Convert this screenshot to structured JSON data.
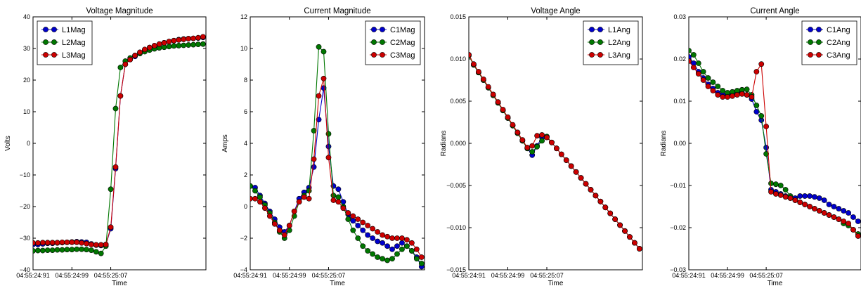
{
  "colors": {
    "blue": "#0000cc",
    "green": "#007700",
    "red": "#cc0000"
  },
  "chart_data": [
    {
      "type": "line",
      "title": "Voltage Magnitude",
      "xlabel": "Time",
      "ylabel": "Volts",
      "ylim": [
        -40,
        40
      ],
      "yticks": [
        40,
        30,
        20,
        10,
        0,
        -10,
        -20,
        -30,
        -40
      ],
      "ytick_labels": [
        "40",
        "30",
        "20",
        "10",
        "0",
        "−10",
        "−20",
        "−30",
        "−40"
      ],
      "xticks": [
        "04:55:24:91",
        "04:55:24:99",
        "04:55:25:07"
      ],
      "x": [
        0,
        1,
        2,
        3,
        4,
        5,
        6,
        7,
        8,
        9,
        10,
        11,
        12,
        13,
        14,
        15,
        16,
        17,
        18,
        19,
        20,
        21,
        22,
        23,
        24,
        25,
        26,
        27,
        28,
        29,
        30,
        31,
        32,
        33,
        34,
        35
      ],
      "legend_loc": "upper-left",
      "series": [
        {
          "name": "L1Mag",
          "color": "blue",
          "values": [
            -32.0,
            -32.0,
            -31.8,
            -31.6,
            -31.6,
            -31.5,
            -31.4,
            -31.3,
            -31.2,
            -31.1,
            -31.2,
            -31.3,
            -31.8,
            -32.2,
            -32.3,
            -32.0,
            -27.0,
            -8.0,
            15.0,
            25.0,
            26.5,
            27.5,
            28.5,
            29.5,
            30.3,
            30.8,
            31.3,
            31.8,
            32.2,
            32.5,
            32.8,
            33.0,
            33.1,
            33.2,
            33.3,
            33.5
          ]
        },
        {
          "name": "L2Mag",
          "color": "green",
          "values": [
            -34.0,
            -33.9,
            -33.9,
            -33.8,
            -33.8,
            -33.7,
            -33.7,
            -33.6,
            -33.6,
            -33.5,
            -33.5,
            -33.6,
            -33.8,
            -34.3,
            -34.8,
            -32.5,
            -14.5,
            11.0,
            24.0,
            26.0,
            27.0,
            27.8,
            28.4,
            29.0,
            29.5,
            29.9,
            30.2,
            30.4,
            30.6,
            30.8,
            30.9,
            31.0,
            31.1,
            31.2,
            31.3,
            31.4
          ]
        },
        {
          "name": "L3Mag",
          "color": "red",
          "values": [
            -31.5,
            -31.5,
            -31.4,
            -31.4,
            -31.4,
            -31.4,
            -31.3,
            -31.3,
            -31.3,
            -31.3,
            -31.5,
            -31.7,
            -32.0,
            -32.1,
            -32.1,
            -32.0,
            -26.5,
            -7.5,
            15.0,
            25.0,
            26.5,
            27.8,
            28.8,
            29.7,
            30.3,
            30.9,
            31.4,
            31.8,
            32.2,
            32.5,
            32.7,
            32.9,
            33.1,
            33.2,
            33.4,
            33.7
          ]
        }
      ]
    },
    {
      "type": "line",
      "title": "Current Magnitude",
      "xlabel": "Time",
      "ylabel": "Amps",
      "ylim": [
        -4,
        12
      ],
      "yticks": [
        12,
        10,
        8,
        6,
        4,
        2,
        0,
        -2,
        -4
      ],
      "ytick_labels": [
        "12",
        "10",
        "8",
        "6",
        "4",
        "2",
        "0",
        "−2",
        "−4"
      ],
      "xticks": [
        "04:55:24:91",
        "04:55:24:99",
        "04:55:25:07"
      ],
      "x": [
        0,
        1,
        2,
        3,
        4,
        5,
        6,
        7,
        8,
        9,
        10,
        11,
        12,
        13,
        14,
        15,
        16,
        17,
        18,
        19,
        20,
        21,
        22,
        23,
        24,
        25,
        26,
        27,
        28,
        29,
        30,
        31,
        32,
        33,
        34,
        35
      ],
      "legend_loc": "upper-right",
      "series": [
        {
          "name": "C1Mag",
          "color": "blue",
          "values": [
            1.3,
            1.2,
            0.7,
            0.2,
            -0.3,
            -0.8,
            -1.3,
            -1.6,
            -1.2,
            -0.3,
            0.5,
            0.9,
            1.2,
            2.5,
            5.5,
            7.5,
            3.8,
            1.3,
            1.1,
            0.3,
            -0.5,
            -0.9,
            -1.2,
            -1.5,
            -1.8,
            -2.0,
            -2.2,
            -2.3,
            -2.5,
            -2.7,
            -2.5,
            -2.3,
            -2.5,
            -2.8,
            -3.2,
            -3.8
          ]
        },
        {
          "name": "C2Mag",
          "color": "green",
          "values": [
            1.3,
            1.0,
            0.6,
            0.1,
            -0.4,
            -1.0,
            -1.6,
            -2.0,
            -1.5,
            -0.6,
            0.3,
            0.7,
            1.0,
            4.8,
            10.1,
            9.8,
            4.6,
            0.7,
            0.6,
            0.0,
            -0.8,
            -1.5,
            -2.0,
            -2.5,
            -2.8,
            -3.0,
            -3.2,
            -3.3,
            -3.4,
            -3.3,
            -3.0,
            -2.7,
            -2.5,
            -2.8,
            -3.3,
            -3.6
          ]
        },
        {
          "name": "C3Mag",
          "color": "red",
          "values": [
            0.5,
            0.5,
            0.3,
            -0.1,
            -0.6,
            -1.1,
            -1.5,
            -1.8,
            -1.2,
            -0.3,
            0.3,
            0.6,
            0.5,
            3.0,
            7.0,
            8.1,
            3.1,
            0.4,
            0.3,
            -0.1,
            -0.4,
            -0.6,
            -0.8,
            -1.0,
            -1.2,
            -1.4,
            -1.6,
            -1.8,
            -1.9,
            -2.0,
            -2.0,
            -2.0,
            -2.1,
            -2.3,
            -2.7,
            -3.2
          ]
        }
      ]
    },
    {
      "type": "line",
      "title": "Voltage Angle",
      "xlabel": "Time",
      "ylabel": "Radians",
      "ylim": [
        -0.015,
        0.015
      ],
      "yticks": [
        0.015,
        0.01,
        0.005,
        0.0,
        -0.005,
        -0.01,
        -0.015
      ],
      "ytick_labels": [
        "0.015",
        "0.010",
        "0.005",
        "0.000",
        "−0.005",
        "−0.010",
        "−0.015"
      ],
      "xticks": [
        "04:55:24:91",
        "04:55:24:99",
        "04:55:25:07"
      ],
      "x": [
        0,
        1,
        2,
        3,
        4,
        5,
        6,
        7,
        8,
        9,
        10,
        11,
        12,
        13,
        14,
        15,
        16,
        17,
        18,
        19,
        20,
        21,
        22,
        23,
        24,
        25,
        26,
        27,
        28,
        29,
        30,
        31,
        32,
        33,
        34,
        35
      ],
      "legend_loc": "upper-right",
      "series": [
        {
          "name": "L1Ang",
          "color": "blue",
          "values": [
            0.0105,
            0.0093,
            0.0084,
            0.0075,
            0.0066,
            0.0057,
            0.0048,
            0.0039,
            0.003,
            0.0021,
            0.0012,
            0.0003,
            -0.0006,
            -0.0014,
            -0.0003,
            0.0007,
            0.0008,
            0.0001,
            -0.0006,
            -0.0013,
            -0.002,
            -0.0027,
            -0.0034,
            -0.0041,
            -0.0048,
            -0.0055,
            -0.0062,
            -0.0069,
            -0.0076,
            -0.0083,
            -0.009,
            -0.0097,
            -0.0104,
            -0.0111,
            -0.0118,
            -0.0125
          ]
        },
        {
          "name": "L2Ang",
          "color": "green",
          "values": [
            0.0104,
            0.0093,
            0.0084,
            0.0075,
            0.0066,
            0.0057,
            0.0048,
            0.0039,
            0.003,
            0.0021,
            0.0012,
            0.0003,
            -0.0006,
            -0.001,
            -0.0004,
            0.0003,
            0.0008,
            0.0001,
            -0.0006,
            -0.0013,
            -0.002,
            -0.0027,
            -0.0034,
            -0.0041,
            -0.0048,
            -0.0055,
            -0.0062,
            -0.0069,
            -0.0076,
            -0.0083,
            -0.009,
            -0.0097,
            -0.0104,
            -0.0111,
            -0.0118,
            -0.0125
          ]
        },
        {
          "name": "L3Ang",
          "color": "red",
          "values": [
            0.0105,
            0.0094,
            0.0085,
            0.0076,
            0.0067,
            0.0058,
            0.0049,
            0.004,
            0.0031,
            0.0022,
            0.0013,
            0.0004,
            -0.0005,
            -0.0003,
            0.0009,
            0.001,
            0.0007,
            0.0001,
            -0.0006,
            -0.0013,
            -0.002,
            -0.0027,
            -0.0034,
            -0.0041,
            -0.0048,
            -0.0055,
            -0.0062,
            -0.0069,
            -0.0076,
            -0.0083,
            -0.009,
            -0.0097,
            -0.0104,
            -0.0111,
            -0.0118,
            -0.0125
          ]
        }
      ]
    },
    {
      "type": "line",
      "title": "Current Angle",
      "xlabel": "Time",
      "ylabel": "Radians",
      "ylim": [
        -0.03,
        0.03
      ],
      "yticks": [
        0.03,
        0.02,
        0.01,
        0.0,
        -0.01,
        -0.02,
        -0.03
      ],
      "ytick_labels": [
        "0.03",
        "0.02",
        "0.01",
        "0.00",
        "−0.01",
        "−0.02",
        "−0.03"
      ],
      "xticks": [
        "04:55:24:91",
        "04:55:24:99",
        "04:55:25:07"
      ],
      "x": [
        0,
        1,
        2,
        3,
        4,
        5,
        6,
        7,
        8,
        9,
        10,
        11,
        12,
        13,
        14,
        15,
        16,
        17,
        18,
        19,
        20,
        21,
        22,
        23,
        24,
        25,
        26,
        27,
        28,
        29,
        30,
        31,
        32,
        33,
        34,
        35
      ],
      "legend_loc": "upper-right",
      "series": [
        {
          "name": "C1Ang",
          "color": "blue",
          "values": [
            0.0205,
            0.019,
            0.017,
            0.0155,
            0.014,
            0.013,
            0.012,
            0.0115,
            0.0115,
            0.012,
            0.012,
            0.012,
            0.0115,
            0.0105,
            0.0075,
            0.0055,
            -0.001,
            -0.011,
            -0.0115,
            -0.012,
            -0.0125,
            -0.013,
            -0.013,
            -0.0125,
            -0.0125,
            -0.0125,
            -0.0127,
            -0.013,
            -0.0135,
            -0.0145,
            -0.015,
            -0.0155,
            -0.016,
            -0.0165,
            -0.0175,
            -0.0185
          ]
        },
        {
          "name": "C2Ang",
          "color": "green",
          "values": [
            0.022,
            0.021,
            0.019,
            0.017,
            0.0155,
            0.0145,
            0.0135,
            0.0125,
            0.012,
            0.0122,
            0.0125,
            0.0127,
            0.0128,
            0.0115,
            0.009,
            0.0065,
            -0.0025,
            -0.0095,
            -0.0097,
            -0.01,
            -0.011,
            -0.0125,
            -0.0135,
            -0.014,
            -0.0145,
            -0.015,
            -0.0155,
            -0.016,
            -0.0165,
            -0.017,
            -0.0175,
            -0.018,
            -0.019,
            -0.0195,
            -0.0205,
            -0.0215
          ]
        },
        {
          "name": "C3Ang",
          "color": "red",
          "values": [
            0.0195,
            0.018,
            0.0165,
            0.015,
            0.0135,
            0.0125,
            0.0115,
            0.011,
            0.011,
            0.0112,
            0.0115,
            0.0117,
            0.0115,
            0.011,
            0.017,
            0.0188,
            0.004,
            -0.0115,
            -0.012,
            -0.0123,
            -0.0127,
            -0.013,
            -0.0135,
            -0.014,
            -0.0145,
            -0.015,
            -0.0155,
            -0.016,
            -0.0165,
            -0.017,
            -0.0175,
            -0.018,
            -0.0185,
            -0.019,
            -0.0205,
            -0.022
          ]
        }
      ]
    }
  ]
}
